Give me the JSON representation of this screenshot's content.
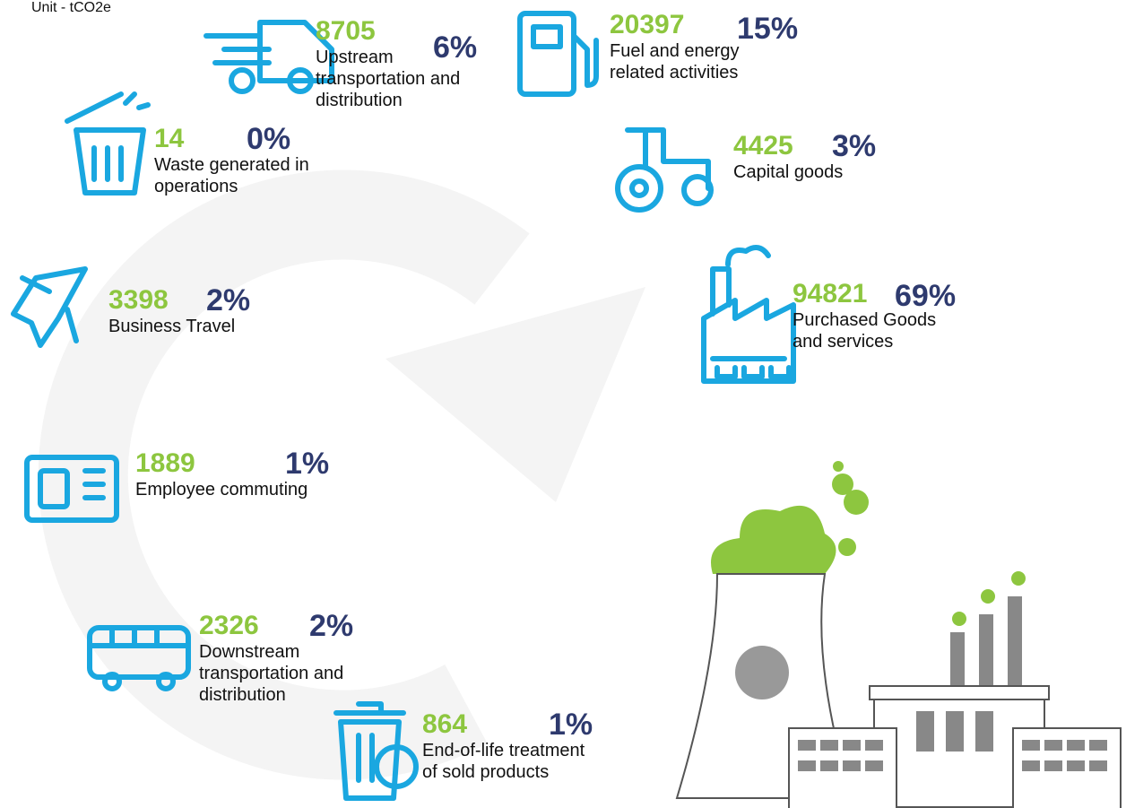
{
  "unit": "Unit - tCO2e",
  "items": [
    {
      "value": "8705",
      "percent": "6%",
      "label": [
        "Upstream",
        "transportation and",
        "distribution"
      ]
    },
    {
      "value": "20397",
      "percent": "15%",
      "label": [
        "Fuel and energy",
        "related activities"
      ]
    },
    {
      "value": "14",
      "percent": "0%",
      "label": [
        "Waste generated in",
        "operations"
      ]
    },
    {
      "value": "4425",
      "percent": "3%",
      "label": [
        "Capital goods"
      ]
    },
    {
      "value": "3398",
      "percent": "2%",
      "label": [
        "Business Travel"
      ]
    },
    {
      "value": "94821",
      "percent": "69%",
      "label": [
        "Purchased Goods",
        "and services"
      ]
    },
    {
      "value": "1889",
      "percent": "1%",
      "label": [
        "Employee commuting"
      ]
    },
    {
      "value": "2326",
      "percent": "2%",
      "label": [
        "Downstream",
        "transportation and",
        "distribution"
      ]
    },
    {
      "value": "864",
      "percent": "1%",
      "label": [
        "End-of-life treatment",
        "of sold products"
      ]
    }
  ]
}
